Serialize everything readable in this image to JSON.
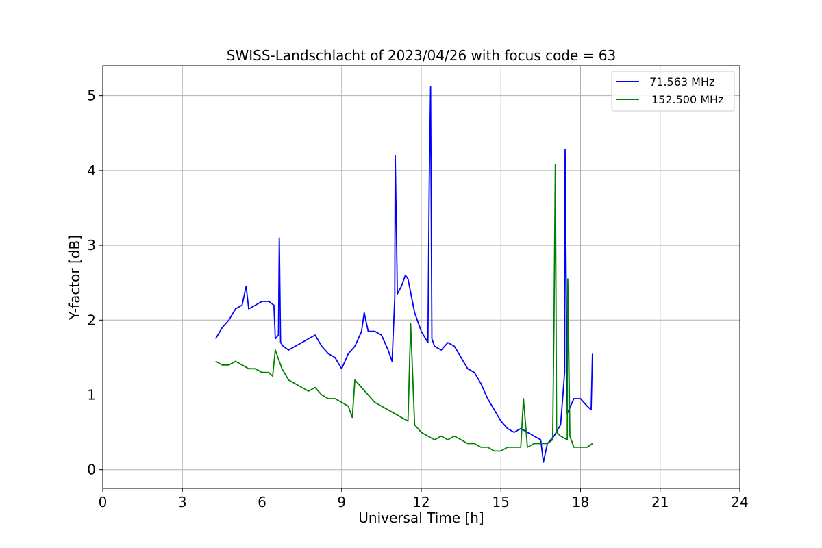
{
  "chart_data": {
    "type": "line",
    "title": "SWISS-Landschlacht of 2023/04/26 with focus code = 63",
    "xlabel": "Universal Time [h]",
    "ylabel": "Y-factor [dB]",
    "xlim": [
      0,
      24
    ],
    "ylim": [
      -0.25,
      5.4
    ],
    "xticks": [
      0,
      3,
      6,
      9,
      12,
      15,
      18,
      21,
      24
    ],
    "yticks": [
      0,
      1,
      2,
      3,
      4,
      5
    ],
    "grid": true,
    "legend_position": "top-right",
    "series": [
      {
        "name": " 71.563 MHz",
        "color": "#0000ff",
        "x": [
          4.25,
          4.5,
          4.75,
          5.0,
          5.25,
          5.4,
          5.5,
          5.75,
          6.0,
          6.25,
          6.45,
          6.5,
          6.62,
          6.65,
          6.7,
          6.8,
          7.0,
          7.25,
          7.5,
          7.75,
          8.0,
          8.25,
          8.5,
          8.75,
          9.0,
          9.25,
          9.5,
          9.75,
          9.85,
          10.0,
          10.25,
          10.5,
          10.75,
          10.9,
          11.0,
          11.02,
          11.1,
          11.25,
          11.4,
          11.5,
          11.75,
          12.0,
          12.25,
          12.3,
          12.35,
          12.4,
          12.5,
          12.75,
          13.0,
          13.25,
          13.5,
          13.75,
          14.0,
          14.25,
          14.5,
          14.75,
          15.0,
          15.25,
          15.5,
          15.75,
          16.0,
          16.25,
          16.5,
          16.6,
          16.75,
          17.0,
          17.25,
          17.4,
          17.42,
          17.5,
          17.75,
          18.0,
          18.25,
          18.4,
          18.45
        ],
        "y": [
          1.75,
          1.9,
          2.0,
          2.15,
          2.2,
          2.45,
          2.15,
          2.2,
          2.25,
          2.25,
          2.2,
          1.75,
          1.8,
          3.1,
          1.7,
          1.65,
          1.6,
          1.65,
          1.7,
          1.75,
          1.8,
          1.65,
          1.55,
          1.5,
          1.35,
          1.55,
          1.65,
          1.85,
          2.1,
          1.85,
          1.85,
          1.8,
          1.6,
          1.45,
          2.3,
          4.2,
          2.35,
          2.45,
          2.6,
          2.55,
          2.1,
          1.85,
          1.7,
          3.8,
          5.12,
          1.75,
          1.65,
          1.6,
          1.7,
          1.65,
          1.5,
          1.35,
          1.3,
          1.15,
          0.95,
          0.8,
          0.65,
          0.55,
          0.5,
          0.55,
          0.5,
          0.45,
          0.4,
          0.1,
          0.35,
          0.45,
          0.6,
          1.3,
          4.28,
          0.75,
          0.95,
          0.95,
          0.85,
          0.8,
          1.55
        ]
      },
      {
        "name": "152.500 MHz",
        "color": "#008000",
        "x": [
          4.25,
          4.5,
          4.75,
          5.0,
          5.25,
          5.5,
          5.75,
          6.0,
          6.25,
          6.4,
          6.5,
          6.75,
          7.0,
          7.25,
          7.5,
          7.75,
          8.0,
          8.25,
          8.5,
          8.75,
          9.0,
          9.25,
          9.4,
          9.5,
          9.75,
          10.0,
          10.25,
          10.5,
          10.75,
          11.0,
          11.25,
          11.5,
          11.6,
          11.75,
          12.0,
          12.25,
          12.5,
          12.75,
          13.0,
          13.25,
          13.5,
          13.75,
          14.0,
          14.25,
          14.5,
          14.75,
          15.0,
          15.25,
          15.5,
          15.75,
          15.85,
          16.0,
          16.25,
          16.5,
          16.75,
          16.95,
          17.0,
          17.05,
          17.1,
          17.25,
          17.5,
          17.52,
          17.6,
          17.75,
          18.0,
          18.25,
          18.45
        ],
        "y": [
          1.45,
          1.4,
          1.4,
          1.45,
          1.4,
          1.35,
          1.35,
          1.3,
          1.3,
          1.25,
          1.6,
          1.35,
          1.2,
          1.15,
          1.1,
          1.05,
          1.1,
          1.0,
          0.95,
          0.95,
          0.9,
          0.85,
          0.7,
          1.2,
          1.1,
          1.0,
          0.9,
          0.85,
          0.8,
          0.75,
          0.7,
          0.65,
          1.95,
          0.6,
          0.5,
          0.45,
          0.4,
          0.45,
          0.4,
          0.45,
          0.4,
          0.35,
          0.35,
          0.3,
          0.3,
          0.25,
          0.25,
          0.3,
          0.3,
          0.3,
          0.95,
          0.3,
          0.35,
          0.35,
          0.35,
          0.4,
          2.0,
          4.08,
          0.5,
          0.45,
          0.4,
          2.55,
          0.45,
          0.3,
          0.3,
          0.3,
          0.35
        ]
      }
    ]
  }
}
